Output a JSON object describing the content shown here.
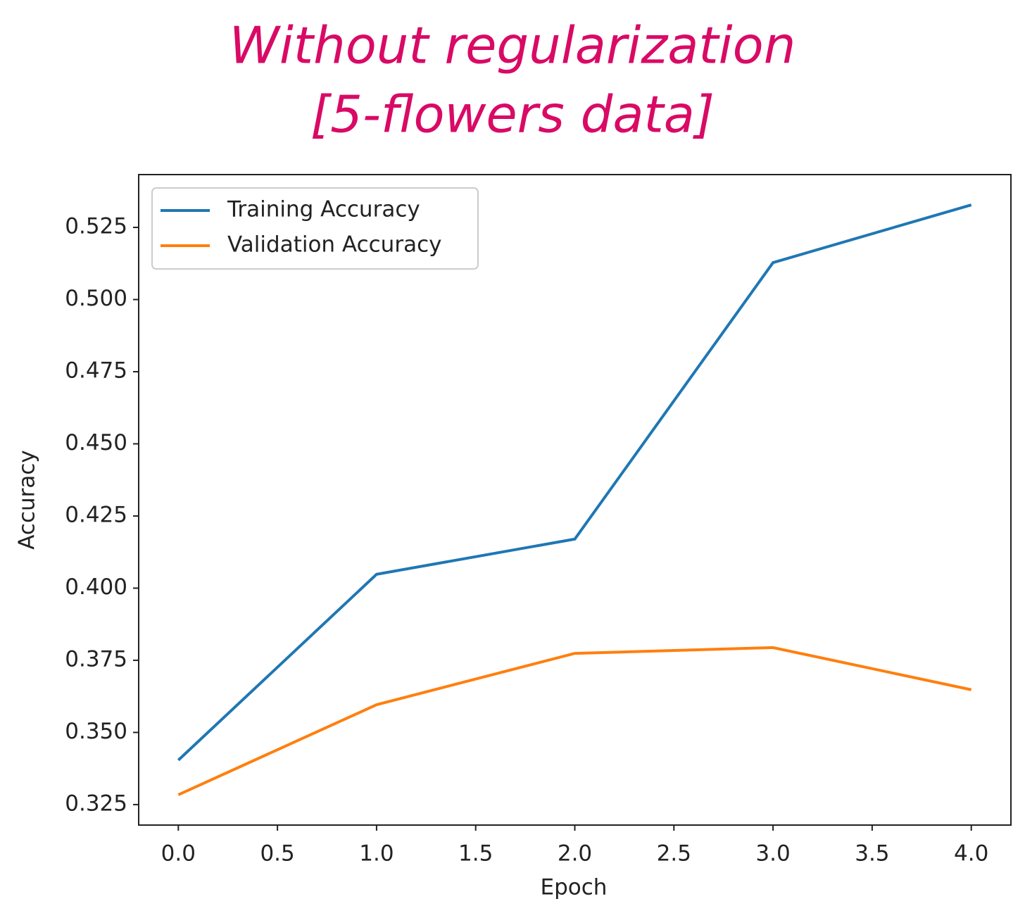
{
  "chart_data": {
    "type": "line",
    "title": [
      "Without regularization",
      "[5-flowers data]"
    ],
    "title_color": "#d90a66",
    "x_label": "Epoch",
    "y_label": "Accuracy",
    "x": [
      0,
      1,
      2,
      3,
      4
    ],
    "series": [
      {
        "name": "Training Accuracy",
        "color": "#1f77b4",
        "values": [
          0.3404,
          0.4048,
          0.417,
          0.5128,
          0.5328
        ]
      },
      {
        "name": "Validation Accuracy",
        "color": "#ff7f0e",
        "values": [
          0.3284,
          0.3596,
          0.3774,
          0.3794,
          0.3648
        ]
      }
    ],
    "xlim": [
      -0.2,
      4.2
    ],
    "xticks": [
      {
        "value": 0,
        "label": "0.0"
      },
      {
        "value": 0.5,
        "label": "0.5"
      },
      {
        "value": 1,
        "label": "1.0"
      },
      {
        "value": 1.5,
        "label": "1.5"
      },
      {
        "value": 2,
        "label": "2.0"
      },
      {
        "value": 2.5,
        "label": "2.5"
      },
      {
        "value": 3,
        "label": "3.0"
      },
      {
        "value": 3.5,
        "label": "3.5"
      },
      {
        "value": 4,
        "label": "4.0"
      }
    ],
    "ylim": [
      0.3179,
      0.5433
    ],
    "yticks": [
      0.325,
      {
        "value": 0.35,
        "label": "0.350"
      },
      0.375,
      {
        "value": 0.4,
        "label": "0.400"
      },
      0.425,
      {
        "value": 0.45,
        "label": "0.450"
      },
      0.475,
      {
        "value": 0.5,
        "label": "0.500"
      },
      0.525
    ],
    "legend": "upper left",
    "grid": false
  }
}
